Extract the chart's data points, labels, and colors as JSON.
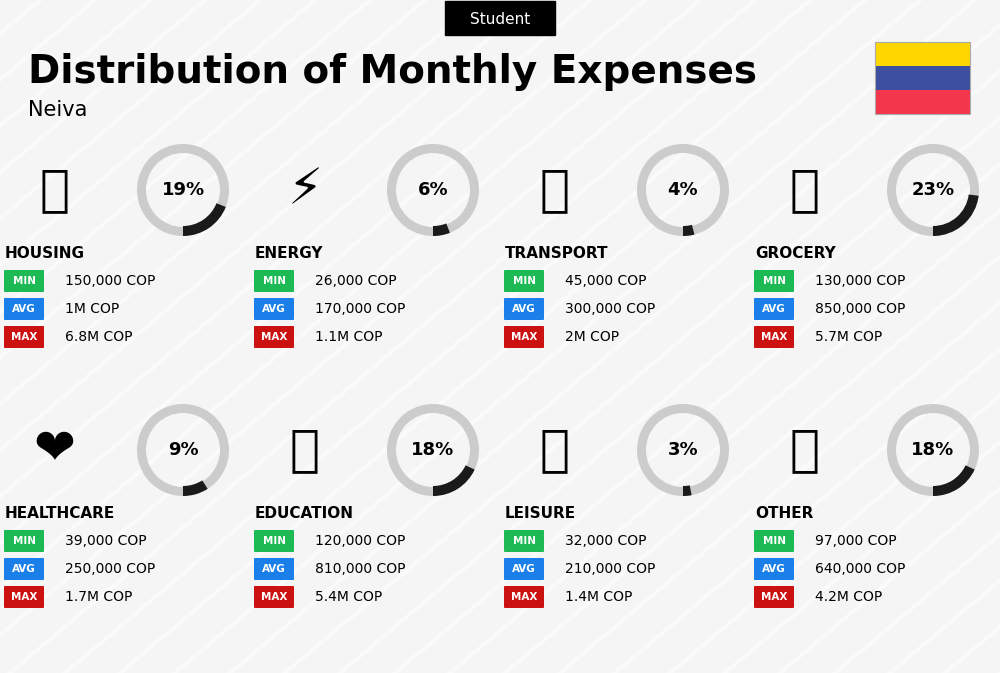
{
  "title": "Distribution of Monthly Expenses",
  "subtitle": "Student",
  "location": "Neiva",
  "background_color": "#f5f5f5",
  "categories": [
    {
      "name": "HOUSING",
      "percent": 19,
      "emoji": "🏙",
      "min": "150,000 COP",
      "avg": "1M COP",
      "max": "6.8M COP",
      "row": 0,
      "col": 0
    },
    {
      "name": "ENERGY",
      "percent": 6,
      "emoji": "⚡",
      "min": "26,000 COP",
      "avg": "170,000 COP",
      "max": "1.1M COP",
      "row": 0,
      "col": 1
    },
    {
      "name": "TRANSPORT",
      "percent": 4,
      "emoji": "🚌",
      "min": "45,000 COP",
      "avg": "300,000 COP",
      "max": "2M COP",
      "row": 0,
      "col": 2
    },
    {
      "name": "GROCERY",
      "percent": 23,
      "emoji": "🛒",
      "min": "130,000 COP",
      "avg": "850,000 COP",
      "max": "5.7M COP",
      "row": 0,
      "col": 3
    },
    {
      "name": "HEALTHCARE",
      "percent": 9,
      "emoji": "❤️",
      "min": "39,000 COP",
      "avg": "250,000 COP",
      "max": "1.7M COP",
      "row": 1,
      "col": 0
    },
    {
      "name": "EDUCATION",
      "percent": 18,
      "emoji": "🎓",
      "min": "120,000 COP",
      "avg": "810,000 COP",
      "max": "5.4M COP",
      "row": 1,
      "col": 1
    },
    {
      "name": "LEISURE",
      "percent": 3,
      "emoji": "🛍️",
      "min": "32,000 COP",
      "avg": "210,000 COP",
      "max": "1.4M COP",
      "row": 1,
      "col": 2
    },
    {
      "name": "OTHER",
      "percent": 18,
      "emoji": "💰",
      "min": "97,000 COP",
      "avg": "640,000 COP",
      "max": "4.2M COP",
      "row": 1,
      "col": 3
    }
  ],
  "color_label_bg_min": "#1db954",
  "color_label_bg_avg": "#1a7fe8",
  "color_label_bg_max": "#cc1111",
  "donut_color": "#1a1a1a",
  "donut_bg": "#cccccc",
  "flag_colors": [
    "#FFD700",
    "#3D4F9F",
    "#F4364C"
  ]
}
